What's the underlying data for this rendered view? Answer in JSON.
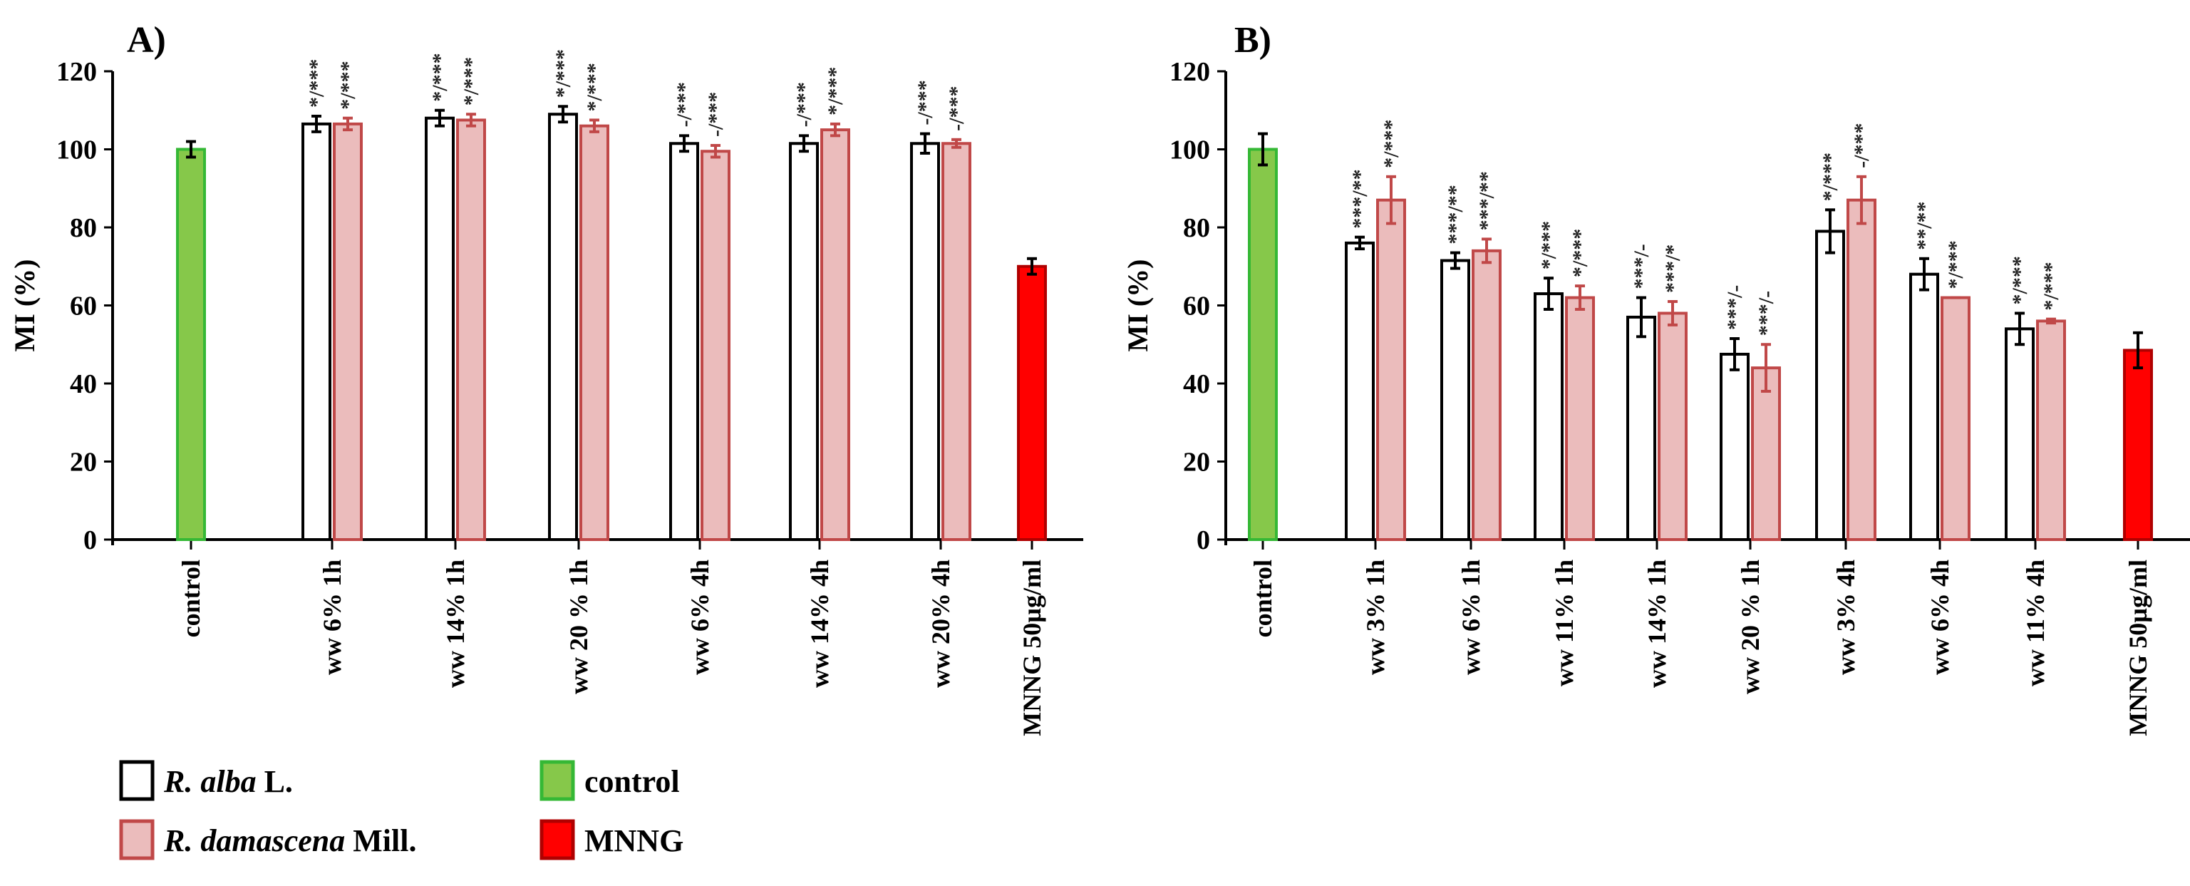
{
  "chart_data": [
    {
      "type": "bar",
      "panel_label": "A)",
      "ylabel": "MI (%)",
      "ylim": [
        0,
        120
      ],
      "yticks": [
        0,
        20,
        40,
        60,
        80,
        100,
        120
      ],
      "categories": [
        "control",
        "ww 6% 1h",
        "ww 14% 1h",
        "ww 20 % 1h",
        "ww 6% 4h",
        "ww 14% 4h",
        "ww 20% 4h",
        "MNNG 50µg/ml"
      ],
      "series": [
        {
          "name": "control",
          "style": "control",
          "values": [
            100,
            null,
            null,
            null,
            null,
            null,
            null,
            null
          ],
          "errors": [
            2,
            null,
            null,
            null,
            null,
            null,
            null,
            null
          ],
          "sig": [
            null,
            null,
            null,
            null,
            null,
            null,
            null,
            null
          ]
        },
        {
          "name": "R. alba L.",
          "style": "alba",
          "values": [
            null,
            106.5,
            108,
            109,
            101.5,
            101.5,
            101.5,
            null
          ],
          "errors": [
            null,
            2,
            2,
            2,
            2,
            2,
            2.5,
            null
          ],
          "sig": [
            null,
            "*/***",
            "*/***",
            "*/***",
            "-/***",
            "-/***",
            "-/***",
            null
          ]
        },
        {
          "name": "R. damascena Mill.",
          "style": "dam",
          "values": [
            null,
            106.5,
            107.5,
            106,
            99.5,
            105,
            101.5,
            null
          ],
          "errors": [
            null,
            1.5,
            1.5,
            1.5,
            1.5,
            1.5,
            1,
            null
          ],
          "sig": [
            null,
            "*/***",
            "*/***",
            "*/***",
            "-/***",
            "*/***",
            "-/***",
            null
          ]
        },
        {
          "name": "MNNG",
          "style": "mnng",
          "values": [
            null,
            null,
            null,
            null,
            null,
            null,
            null,
            70
          ],
          "errors": [
            null,
            null,
            null,
            null,
            null,
            null,
            null,
            2
          ],
          "sig": [
            null,
            null,
            null,
            null,
            null,
            null,
            null,
            null
          ]
        }
      ]
    },
    {
      "type": "bar",
      "panel_label": "B)",
      "ylabel": "MI (%)",
      "ylim": [
        0,
        120
      ],
      "yticks": [
        0,
        20,
        40,
        60,
        80,
        100,
        120
      ],
      "categories": [
        "control",
        "ww 3% 1h",
        "ww 6% 1h",
        "ww 11% 1h",
        "ww 14% 1h",
        "ww 20 % 1h",
        "ww 3% 4h",
        "ww 6% 4h",
        "ww 11% 4h",
        "MNNG 50µg/ml"
      ],
      "series": [
        {
          "name": "control",
          "style": "control",
          "values": [
            100,
            null,
            null,
            null,
            null,
            null,
            null,
            null,
            null,
            null
          ],
          "errors": [
            4,
            null,
            null,
            null,
            null,
            null,
            null,
            null,
            null,
            null
          ],
          "sig": [
            null,
            null,
            null,
            null,
            null,
            null,
            null,
            null,
            null,
            null
          ]
        },
        {
          "name": "R. alba L.",
          "style": "alba",
          "values": [
            null,
            76,
            71.5,
            63,
            57,
            47.5,
            79,
            68,
            54,
            null
          ],
          "errors": [
            null,
            1.5,
            2,
            4,
            5,
            4,
            5.5,
            4,
            4,
            null
          ],
          "sig": [
            null,
            "***/**",
            "***/**",
            "*/***",
            "***/-",
            "***/-",
            "*/***",
            "**/**",
            "*/***",
            null
          ]
        },
        {
          "name": "R. damascena Mill.",
          "style": "dam",
          "values": [
            null,
            87,
            74,
            62,
            58,
            44,
            87,
            62,
            56,
            null
          ],
          "errors": [
            null,
            6,
            3,
            3,
            3,
            6,
            6,
            0,
            0.5,
            null
          ],
          "sig": [
            null,
            "*/***",
            "***/**",
            "*/***",
            "***/*",
            "***/-",
            "-/***",
            "*/***",
            "*/***",
            null
          ]
        },
        {
          "name": "MNNG",
          "style": "mnng",
          "values": [
            null,
            null,
            null,
            null,
            null,
            null,
            null,
            null,
            null,
            48.5
          ],
          "errors": [
            null,
            null,
            null,
            null,
            null,
            null,
            null,
            null,
            null,
            4.5
          ],
          "sig": [
            null,
            null,
            null,
            null,
            null,
            null,
            null,
            null,
            null,
            null
          ]
        }
      ]
    }
  ],
  "legend": {
    "items": [
      {
        "style": "alba",
        "label_italic": "R. alba",
        "label_rest": " L."
      },
      {
        "style": "dam",
        "label_italic": "R. damascena",
        "label_rest": " Mill."
      },
      {
        "style": "control",
        "label_italic": "",
        "label_rest": "control"
      },
      {
        "style": "mnng",
        "label_italic": "",
        "label_rest": "MNNG"
      }
    ]
  },
  "colors": {
    "alba_fill": "#ffffff",
    "alba_stroke": "#000000",
    "dam_fill": "#ebbcbc",
    "dam_stroke": "#c04848",
    "control_fill": "#86c84a",
    "control_stroke": "#35b835",
    "mnng_fill": "#ff0000",
    "mnng_stroke": "#b00000",
    "error_dark": "#000000",
    "error_red": "#c04848"
  }
}
